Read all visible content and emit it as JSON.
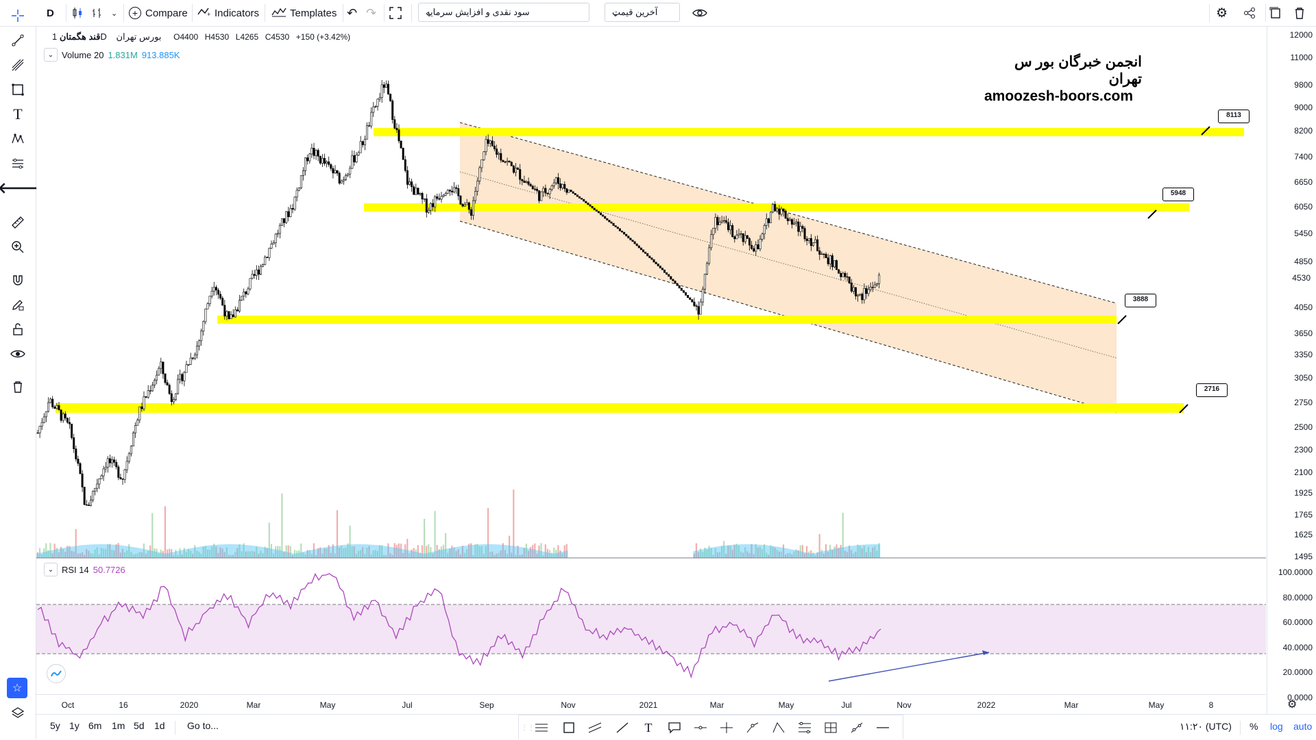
{
  "toolbar": {
    "interval": "D",
    "compare_label": "Compare",
    "indicators_label": "Indicators",
    "templates_label": "Templates",
    "script_select": "سود نقدی و افزایش سرمایه",
    "price_select": "آخرین قیمت"
  },
  "legend": {
    "symbol_name": "قند هگمتان",
    "timeframe": "1D",
    "exchange": "بورس تهران",
    "open": "O4400",
    "high": "H4530",
    "low": "L4265",
    "close": "C4530",
    "change": "+150 (+3.42%)",
    "volume_label": "Volume 20",
    "volume_value_1": "1.831M",
    "volume_value_2": "913.885K"
  },
  "watermark": {
    "line1": "انجمن خبرگان بور س تهران",
    "line2": "amoozesh-boors.com"
  },
  "flags": [
    "8113",
    "5948",
    "3888",
    "2716"
  ],
  "price_axis": {
    "ticks": [
      "12000",
      "11000",
      "9800",
      "9000",
      "8200",
      "7400",
      "6650",
      "6050",
      "5450",
      "4850",
      "4530",
      "4050",
      "3650",
      "3350",
      "3050",
      "2750",
      "2500",
      "2300",
      "2100",
      "1925",
      "1765",
      "1625",
      "1495"
    ],
    "current_price": "4530"
  },
  "rsi": {
    "label": "RSI 14",
    "value": "50.7726",
    "ticks": [
      "100.0000",
      "80.0000",
      "60.0000",
      "40.0000",
      "20.0000",
      "0.0000"
    ],
    "upper_band": 70,
    "lower_band": 30
  },
  "time_axis": {
    "ticks": [
      "Oct",
      "16",
      "2020",
      "Mar",
      "May",
      "Jul",
      "Sep",
      "Nov",
      "2021",
      "Mar",
      "May",
      "Jul",
      "Nov",
      "2022",
      "Mar",
      "May",
      "8"
    ]
  },
  "bottombar": {
    "ranges": [
      "5y",
      "1y",
      "6m",
      "1m",
      "5d",
      "1d"
    ],
    "goto": "Go to...",
    "time": "۱۱:۲۰ (UTC)",
    "percent": "%",
    "log": "log",
    "auto": "auto"
  },
  "colors": {
    "support_line": "#ffff00",
    "channel_fill": "#fde3c5",
    "rsi_line": "#ab47bc",
    "rsi_band": "#f3e5f5",
    "divergence_line": "#3f51b5",
    "volume_area": "#4fc3f7",
    "accent": "#2962ff"
  },
  "chart_data": {
    "type": "candlestick",
    "symbol": "قند هگمتان",
    "support_levels": [
      8113,
      5948,
      3888,
      2716
    ],
    "price_path": [
      [
        "2019-09-20",
        2450
      ],
      [
        "2019-10-01",
        2800
      ],
      [
        "2019-10-20",
        2500
      ],
      [
        "2019-11-05",
        1800
      ],
      [
        "2019-11-25",
        2200
      ],
      [
        "2019-12-10",
        2050
      ],
      [
        "2019-12-25",
        2650
      ],
      [
        "2020-01-15",
        3200
      ],
      [
        "2020-01-25",
        2800
      ],
      [
        "2020-02-20",
        3500
      ],
      [
        "2020-03-05",
        4500
      ],
      [
        "2020-03-20",
        3800
      ],
      [
        "2020-04-20",
        4800
      ],
      [
        "2020-05-20",
        6100
      ],
      [
        "2020-06-05",
        7600
      ],
      [
        "2020-07-05",
        6700
      ],
      [
        "2020-07-25",
        7800
      ],
      [
        "2020-08-15",
        9900
      ],
      [
        "2020-09-05",
        6700
      ],
      [
        "2020-09-25",
        6000
      ],
      [
        "2020-10-15",
        6600
      ],
      [
        "2020-11-05",
        5900
      ],
      [
        "2020-11-20",
        7800
      ],
      [
        "2020-12-10",
        7200
      ],
      [
        "2021-01-10",
        6300
      ],
      [
        "2021-01-25",
        6700
      ],
      [
        "2021-06-10",
        4000
      ],
      [
        "2021-06-25",
        5800
      ],
      [
        "2021-07-15",
        5400
      ],
      [
        "2021-08-05",
        5100
      ],
      [
        "2021-08-20",
        6100
      ],
      [
        "2021-09-20",
        5400
      ],
      [
        "2021-10-20",
        4700
      ],
      [
        "2021-11-10",
        4200
      ],
      [
        "2021-11-30",
        4530
      ]
    ],
    "rsi_values": [
      70,
      40,
      28,
      55,
      72,
      60,
      85,
      45,
      65,
      78,
      55,
      80,
      70,
      90,
      96,
      60,
      75,
      45,
      70,
      85,
      30,
      25,
      45,
      30,
      60,
      85,
      50,
      45,
      52,
      40,
      30,
      15,
      50,
      55,
      40,
      65,
      45,
      40,
      30,
      35,
      50.77
    ]
  }
}
